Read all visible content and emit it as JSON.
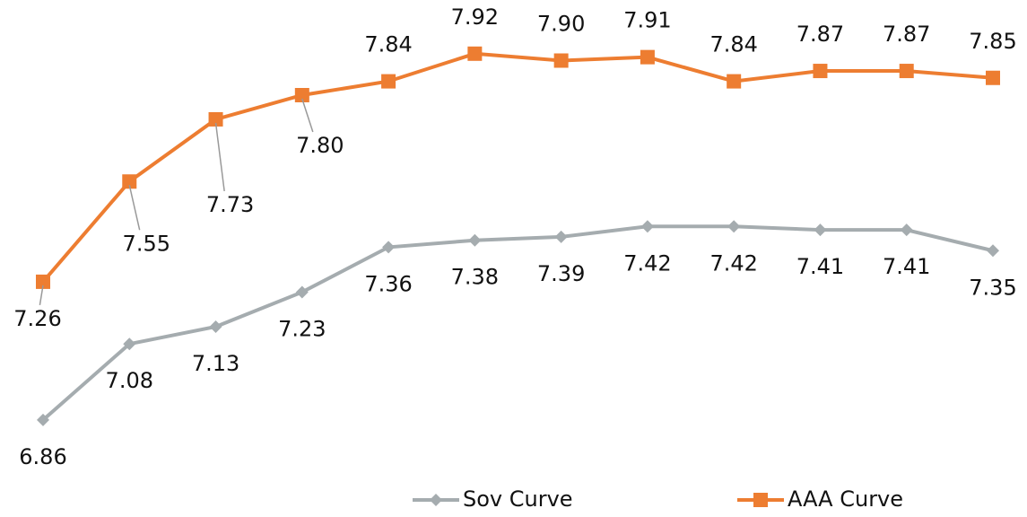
{
  "chart_data": {
    "type": "line",
    "series": [
      {
        "name": "Sov Curve",
        "color": "#a5acaf",
        "marker": "diamond",
        "values": [
          6.86,
          7.08,
          7.13,
          7.23,
          7.36,
          7.38,
          7.39,
          7.42,
          7.42,
          7.41,
          7.41,
          7.35
        ],
        "value_labels": [
          "6.86",
          "7.08",
          "7.13",
          "7.23",
          "7.36",
          "7.38",
          "7.39",
          "7.42",
          "7.42",
          "7.41",
          "7.41",
          "7.35"
        ]
      },
      {
        "name": "AAA Curve",
        "color": "#ed7d31",
        "marker": "square",
        "values": [
          7.26,
          7.55,
          7.73,
          7.8,
          7.84,
          7.92,
          7.9,
          7.91,
          7.84,
          7.87,
          7.87,
          7.85
        ],
        "value_labels": [
          "7.26",
          "7.55",
          "7.73",
          "7.80",
          "7.84",
          "7.92",
          "7.90",
          "7.91",
          "7.84",
          "7.87",
          "7.87",
          "7.85"
        ]
      }
    ],
    "ylim": [
      6.6,
      8.0
    ]
  }
}
